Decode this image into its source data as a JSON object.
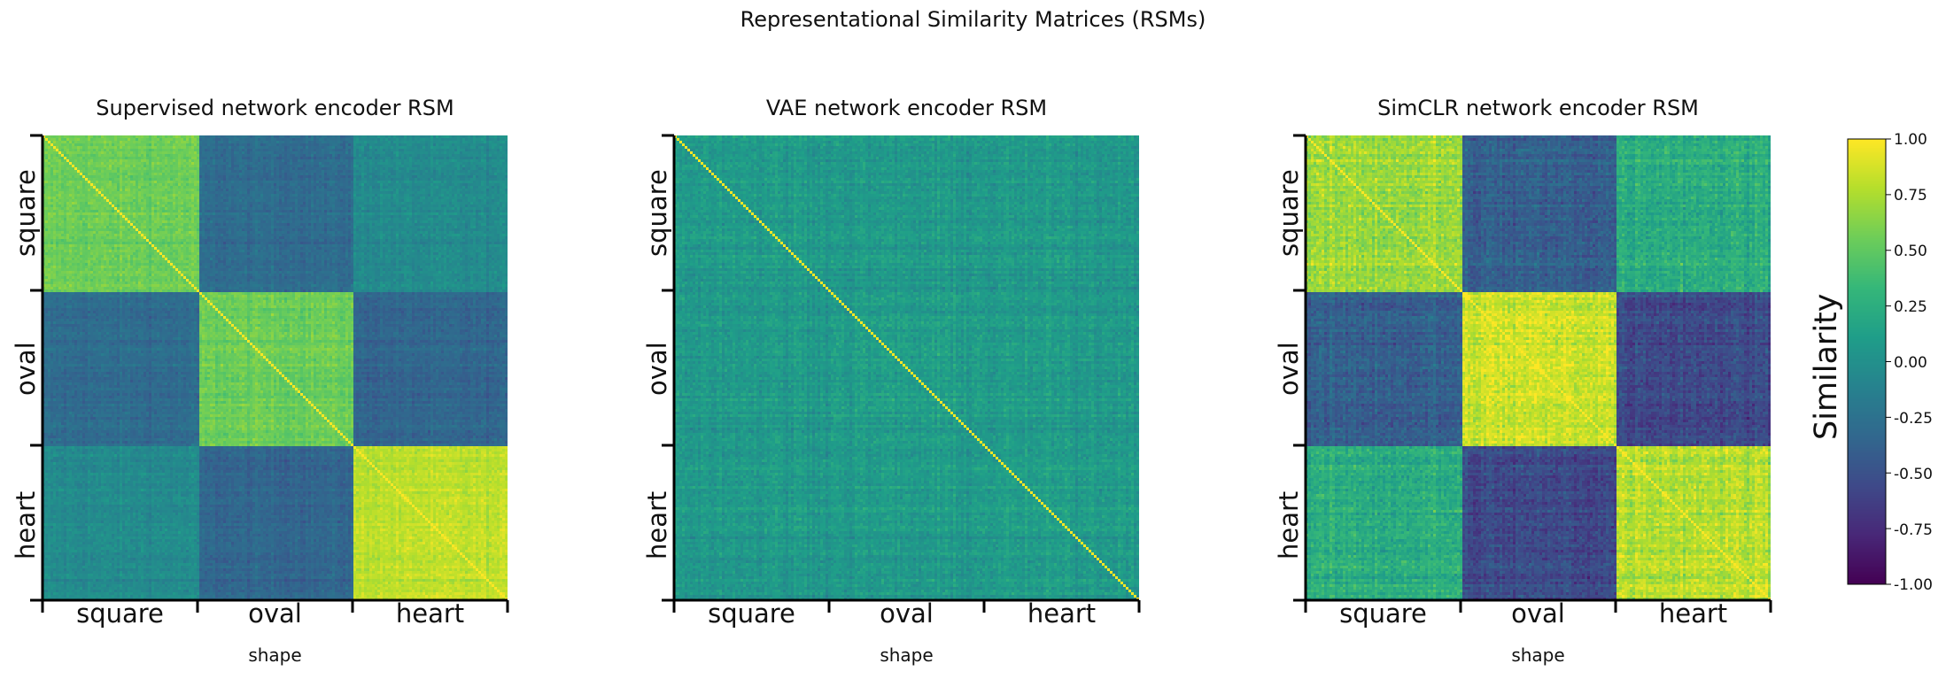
{
  "chart_data": {
    "type": "heatmap",
    "title": "Representational Similarity Matrices (RSMs)",
    "panels": [
      {
        "title": "Supervised network encoder RSM",
        "xlabel": "shape",
        "categories": [
          "square",
          "oval",
          "heart"
        ],
        "block_similarity": [
          [
            0.55,
            -0.3,
            -0.05
          ],
          [
            -0.3,
            0.55,
            -0.35
          ],
          [
            -0.05,
            -0.35,
            0.8
          ]
        ],
        "noise": 0.12
      },
      {
        "title": "VAE network encoder RSM",
        "xlabel": "shape",
        "categories": [
          "square",
          "oval",
          "heart"
        ],
        "block_similarity": [
          [
            0.1,
            0.08,
            0.08
          ],
          [
            0.08,
            0.1,
            0.08
          ],
          [
            0.08,
            0.08,
            0.1
          ]
        ],
        "noise": 0.15
      },
      {
        "title": "SimCLR network encoder RSM",
        "xlabel": "shape",
        "categories": [
          "square",
          "oval",
          "heart"
        ],
        "block_similarity": [
          [
            0.7,
            -0.4,
            0.25
          ],
          [
            -0.4,
            0.85,
            -0.55
          ],
          [
            0.25,
            -0.55,
            0.8
          ]
        ],
        "noise": 0.2
      }
    ],
    "colorbar": {
      "label": "Similarity",
      "colormap": "viridis",
      "range": [
        -1.0,
        1.0
      ],
      "ticks": [
        "1.00",
        "0.75",
        "0.50",
        "0.25",
        "0.00",
        "-0.25",
        "-0.50",
        "-0.75",
        "-1.00"
      ]
    },
    "diagonal_value": 1.0
  }
}
